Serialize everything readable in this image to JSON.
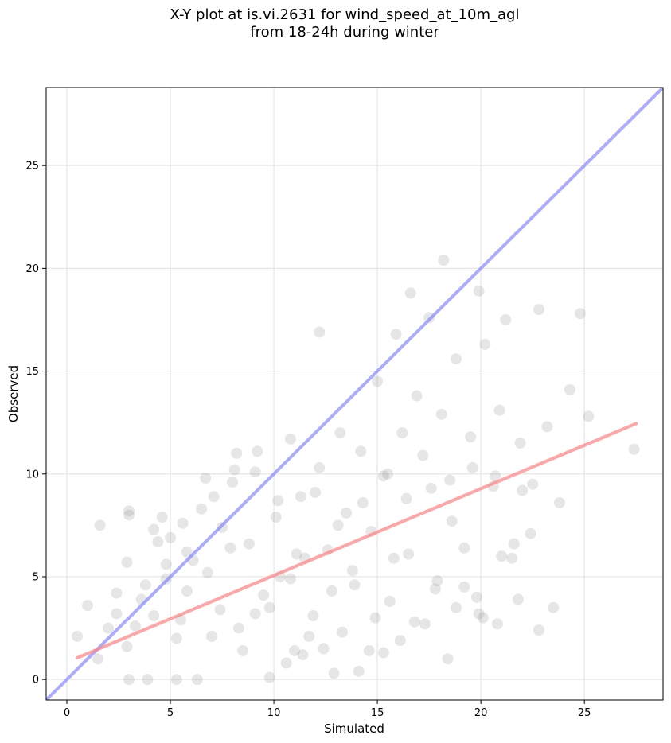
{
  "chart_data": {
    "type": "scatter",
    "title_lines": [
      "X-Y plot at is.vi.2631 for wind_speed_at_10m_agl",
      "from 18-24h during winter"
    ],
    "xlabel": "Simulated",
    "ylabel": "Observed",
    "xlim": [
      -1,
      28.8
    ],
    "ylim": [
      -1,
      28.8
    ],
    "xticks": [
      0,
      5,
      10,
      15,
      20,
      25
    ],
    "yticks": [
      0,
      5,
      10,
      15,
      20,
      25
    ],
    "grid": true,
    "colors": {
      "points": "#808080",
      "identity_line": "#7f7fff",
      "fit_line": "#ff7f7f"
    },
    "identity_line": {
      "x": [
        -1,
        28.8
      ],
      "y": [
        -1,
        28.8
      ]
    },
    "fit_line": {
      "x": [
        0.5,
        27.5
      ],
      "y": [
        1.05,
        12.45
      ]
    },
    "sample_points": {
      "x": [
        0.5,
        1.0,
        1.5,
        2.0,
        2.4,
        3.0,
        3.0,
        2.9,
        3.3,
        3.8,
        4.2,
        4.6,
        4.8,
        5.0,
        5.3,
        5.5,
        5.8,
        6.1,
        6.5,
        7.0,
        7.5,
        8.0,
        8.3,
        8.8,
        9.1,
        9.5,
        9.8,
        10.1,
        10.3,
        10.8,
        11.0,
        11.3,
        11.5,
        11.9,
        12.2,
        12.6,
        12.9,
        13.2,
        13.5,
        13.9,
        14.2,
        14.7,
        15.0,
        15.3,
        15.6,
        15.9,
        16.2,
        16.5,
        16.9,
        17.2,
        17.5,
        17.8,
        18.1,
        18.5,
        18.8,
        19.2,
        19.5,
        19.9,
        20.2,
        20.6,
        20.9,
        21.2,
        21.5,
        21.9,
        22.4,
        22.8,
        23.2,
        23.8,
        24.3,
        24.8,
        25.2,
        27.4,
        16.6,
        18.2,
        19.9,
        12.2,
        9.2,
        8.2,
        6.7,
        3.0,
        4.2,
        3.9,
        5.3,
        6.3,
        7.4,
        8.5,
        9.8,
        10.8,
        11.7,
        12.8,
        13.8,
        14.9,
        15.8,
        16.8,
        17.9,
        18.8,
        19.8,
        20.8,
        21.8,
        22.8,
        23.5,
        14.6,
        15.3,
        16.1,
        17.3,
        18.4,
        19.2,
        20.1,
        21.0,
        22.0,
        10.6,
        11.4,
        12.4,
        13.3,
        14.1,
        8.1,
        7.1,
        5.8,
        4.8,
        3.6,
        2.4,
        1.6,
        2.9,
        4.4,
        5.6,
        6.8,
        7.9,
        9.1,
        10.2,
        11.1,
        12.0,
        13.1,
        14.3,
        15.5,
        16.4,
        17.6,
        18.6,
        19.6,
        20.7,
        21.6,
        22.5
      ],
      "y": [
        2.1,
        3.6,
        1.0,
        2.5,
        3.2,
        8.2,
        0.0,
        1.6,
        2.6,
        4.6,
        3.1,
        7.9,
        5.6,
        6.9,
        2.0,
        2.9,
        4.3,
        5.8,
        8.3,
        2.1,
        7.4,
        9.6,
        2.5,
        6.6,
        10.1,
        4.1,
        0.1,
        7.9,
        5.0,
        11.7,
        1.4,
        8.9,
        5.9,
        3.1,
        10.3,
        6.3,
        0.3,
        12.0,
        8.1,
        4.6,
        11.1,
        7.2,
        14.5,
        9.9,
        3.8,
        16.8,
        12.0,
        6.1,
        13.8,
        10.9,
        17.6,
        4.4,
        12.9,
        9.7,
        15.6,
        6.4,
        11.8,
        3.2,
        16.3,
        9.4,
        13.1,
        17.5,
        5.9,
        11.5,
        7.1,
        18.0,
        12.3,
        8.6,
        14.1,
        17.8,
        12.8,
        11.2,
        18.8,
        20.4,
        18.9,
        16.9,
        11.1,
        11.0,
        9.8,
        8.0,
        7.3,
        0.0,
        0.0,
        0.0,
        3.4,
        1.4,
        3.5,
        4.9,
        2.1,
        4.3,
        5.3,
        3.0,
        5.9,
        2.8,
        4.8,
        3.5,
        4.0,
        2.7,
        3.9,
        2.4,
        3.5,
        1.4,
        1.3,
        1.9,
        2.7,
        1.0,
        4.5,
        3.0,
        6.0,
        9.2,
        0.8,
        1.2,
        1.5,
        2.3,
        0.4,
        10.2,
        8.9,
        6.2,
        4.9,
        3.9,
        4.2,
        7.5,
        5.7,
        6.7,
        7.6,
        5.2,
        6.4,
        3.2,
        8.7,
        6.1,
        9.1,
        7.5,
        8.6,
        10.0,
        8.8,
        9.3,
        7.7,
        10.3,
        9.9,
        6.6,
        9.5
      ]
    }
  }
}
